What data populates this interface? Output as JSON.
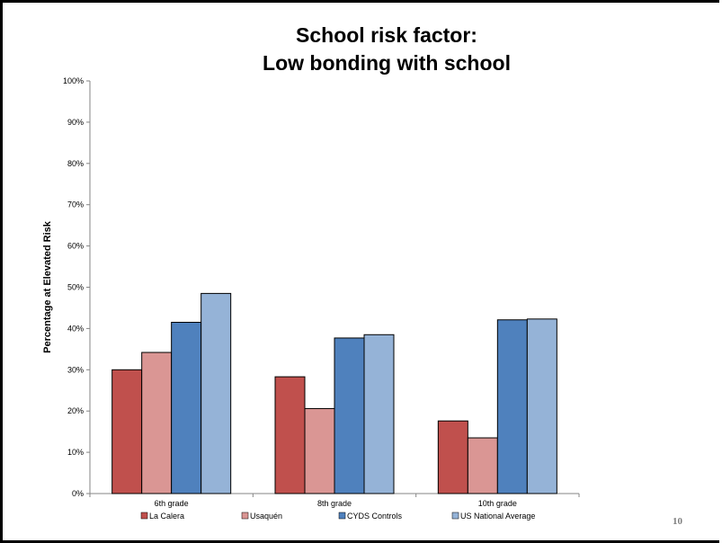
{
  "title_line1": "School risk factor:",
  "title_line2": "Low bonding with school",
  "page_number": "10",
  "chart_data": {
    "type": "bar",
    "title": "School risk factor: Low bonding with school",
    "xlabel": "",
    "ylabel": "Percentage at Elevated Risk",
    "ylim": [
      0,
      100
    ],
    "yticks": [
      "0%",
      "10%",
      "20%",
      "30%",
      "40%",
      "50%",
      "60%",
      "70%",
      "80%",
      "90%",
      "100%"
    ],
    "categories": [
      "6th grade",
      "8th grade",
      "10th grade"
    ],
    "series": [
      {
        "name": "La Calera",
        "color": "#c0504d",
        "values": [
          30.0,
          28.3,
          17.6
        ]
      },
      {
        "name": "Usaquén",
        "color": "#da9694",
        "values": [
          34.2,
          20.6,
          13.5
        ]
      },
      {
        "name": "CYDS Controls",
        "color": "#4f81bd",
        "values": [
          41.5,
          37.7,
          42.1
        ]
      },
      {
        "name": "US National Average",
        "color": "#95b3d7",
        "values": [
          48.5,
          38.5,
          42.3
        ]
      }
    ],
    "grid": false,
    "legend_position": "bottom"
  }
}
